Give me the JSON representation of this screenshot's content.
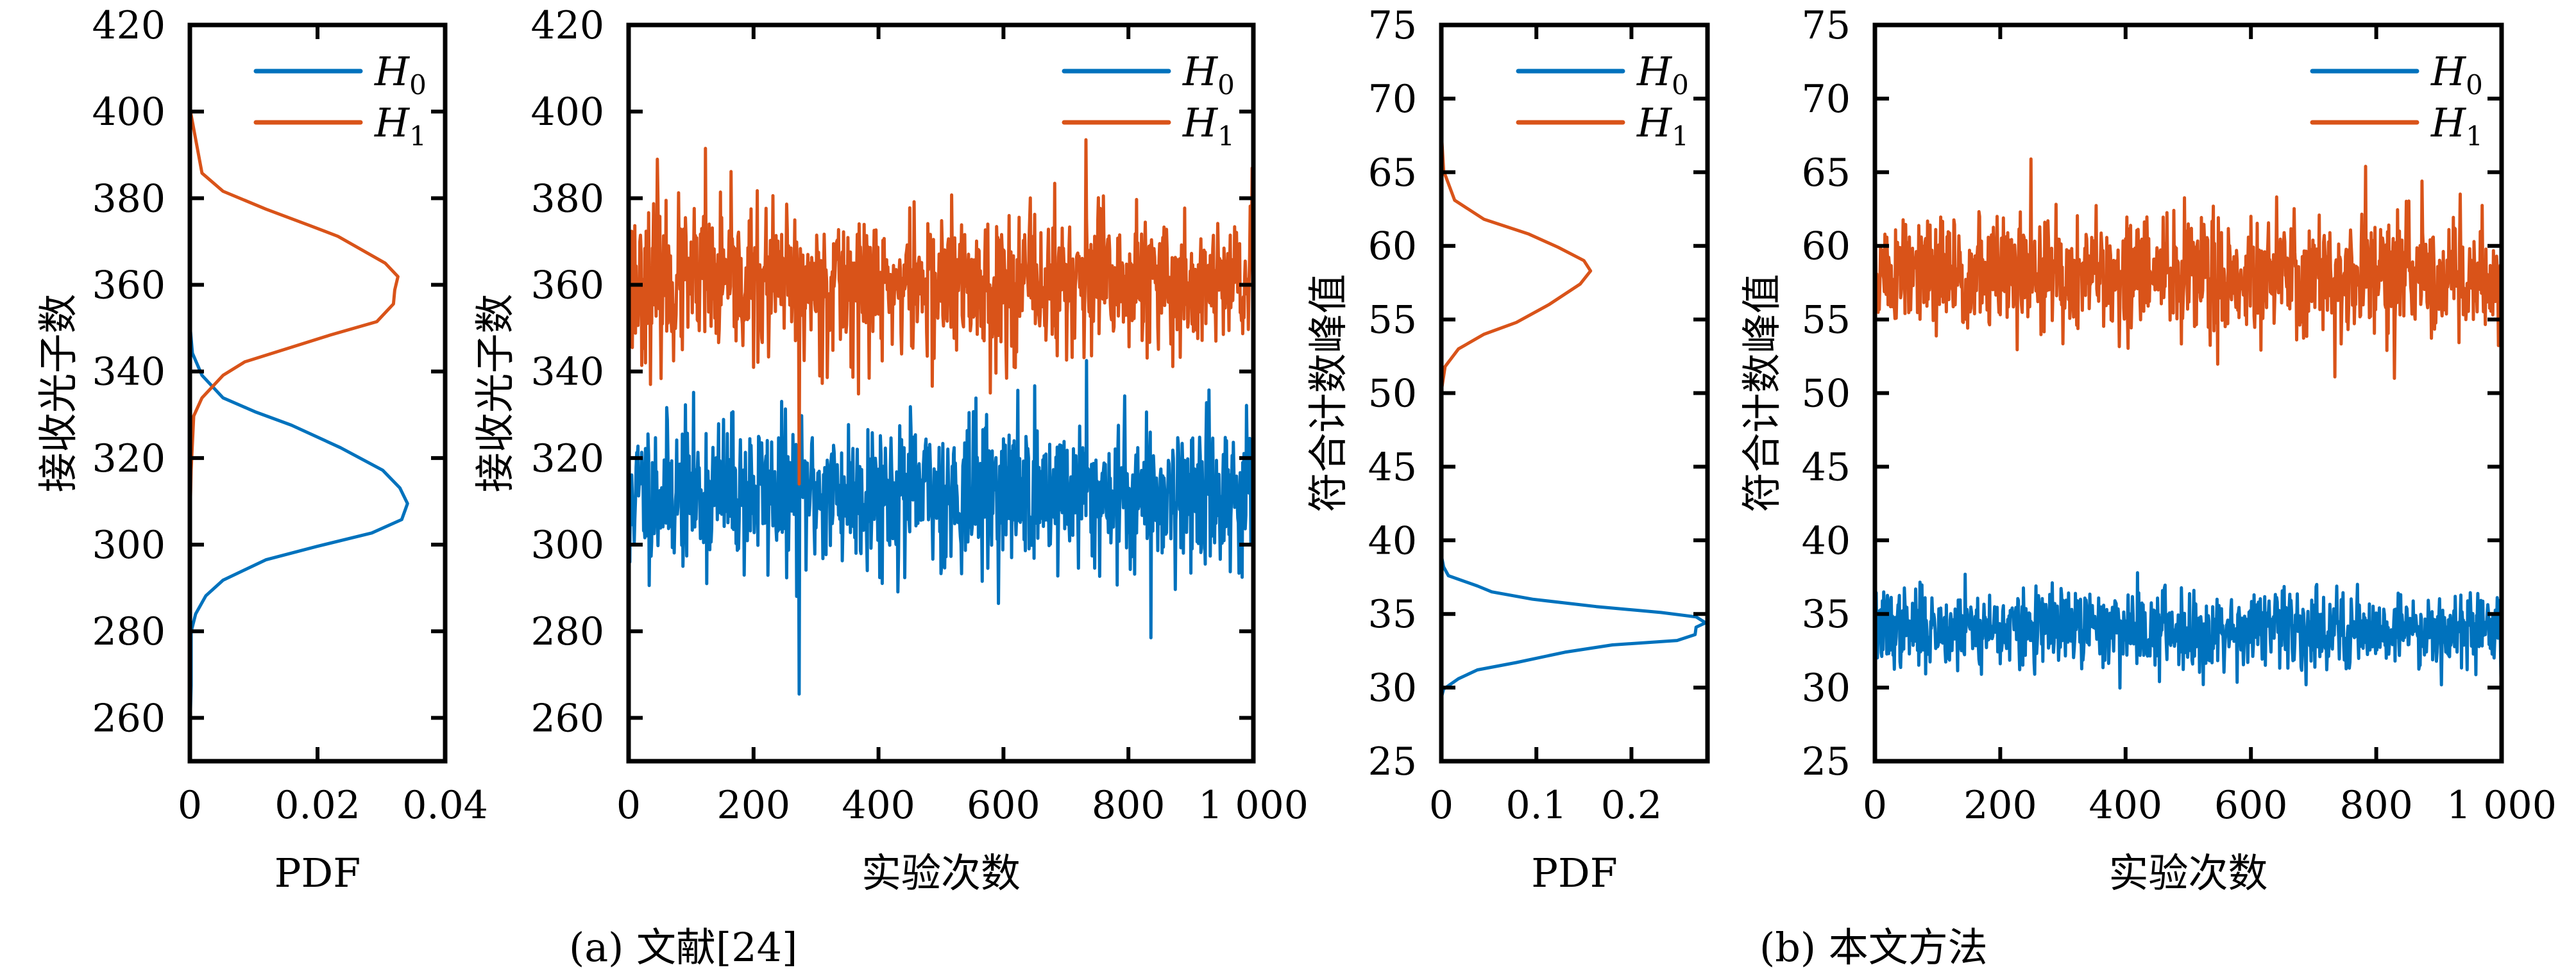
{
  "colors": {
    "H0": "#0072BD",
    "H1": "#D95319",
    "axis": "#000000"
  },
  "captions": [
    {
      "id": "a",
      "text": "(a) 文献[24]"
    },
    {
      "id": "b",
      "text": "(b) 本文方法"
    }
  ],
  "chart_data": [
    {
      "id": "a-pdf",
      "group": "a",
      "type": "line",
      "orientation": "horizontal-pdf",
      "title": "",
      "xlabel": "PDF",
      "ylabel": "接收光子数",
      "xlim": [
        0,
        0.04
      ],
      "ylim": [
        250,
        420
      ],
      "xticks": [
        0,
        0.02,
        0.04
      ],
      "xtick_labels": [
        "0",
        "0.02",
        "0.04"
      ],
      "yticks": [
        260,
        280,
        300,
        320,
        340,
        360,
        380,
        400,
        420
      ],
      "ytick_labels": [
        "260",
        "280",
        "300",
        "320",
        "340",
        "360",
        "380",
        "400",
        "420"
      ],
      "grid": false,
      "legend": {
        "placement": "top-right",
        "entries": [
          {
            "base": "H",
            "sub": "0",
            "series": "H0"
          },
          {
            "base": "H",
            "sub": "1",
            "series": "H1"
          }
        ]
      },
      "series": [
        {
          "name": "H0",
          "points": [
            [
              0,
              256.5
            ],
            [
              0.0002,
              267.5
            ],
            [
              0.0002,
              279.9
            ],
            [
              0.0009,
              284
            ],
            [
              0.0025,
              288.2
            ],
            [
              0.0052,
              291.8
            ],
            [
              0.0119,
              296.5
            ],
            [
              0.0199,
              299.6
            ],
            [
              0.0285,
              302.7
            ],
            [
              0.0332,
              305.8
            ],
            [
              0.0341,
              309.5
            ],
            [
              0.0329,
              313.1
            ],
            [
              0.0302,
              317.2
            ],
            [
              0.0236,
              322.4
            ],
            [
              0.0159,
              327.6
            ],
            [
              0.0102,
              330.7
            ],
            [
              0.0052,
              333.9
            ],
            [
              0.0019,
              339.1
            ],
            [
              0.0004,
              344.2
            ],
            [
              0,
              351
            ]
          ]
        },
        {
          "name": "H1",
          "points": [
            [
              0,
              304.8
            ],
            [
              0.0002,
              317.3
            ],
            [
              0.0006,
              329.7
            ],
            [
              0.0019,
              333.9
            ],
            [
              0.0052,
              339.1
            ],
            [
              0.0086,
              342.2
            ],
            [
              0.0153,
              345.3
            ],
            [
              0.022,
              348.4
            ],
            [
              0.0293,
              351.5
            ],
            [
              0.0319,
              355.6
            ],
            [
              0.0321,
              358.8
            ],
            [
              0.0326,
              361.9
            ],
            [
              0.0306,
              365
            ],
            [
              0.0232,
              371.2
            ],
            [
              0.0186,
              373.8
            ],
            [
              0.0119,
              377.5
            ],
            [
              0.0052,
              381.6
            ],
            [
              0.0019,
              385.8
            ],
            [
              0.0001,
              400
            ],
            [
              0,
              402.9
            ]
          ]
        }
      ]
    },
    {
      "id": "a-trials",
      "group": "a",
      "type": "line",
      "orientation": "time-series",
      "title": "",
      "xlabel": "实验次数",
      "ylabel": "接收光子数",
      "xlim": [
        0,
        1000
      ],
      "ylim": [
        250,
        420
      ],
      "xticks": [
        0,
        200,
        400,
        600,
        800,
        1000
      ],
      "xtick_labels": [
        "0",
        "200",
        "400",
        "600",
        "800",
        "1 000"
      ],
      "yticks": [
        260,
        280,
        300,
        320,
        340,
        360,
        380,
        400,
        420
      ],
      "ytick_labels": [
        "260",
        "280",
        "300",
        "320",
        "340",
        "360",
        "380",
        "400",
        "420"
      ],
      "grid": false,
      "legend": {
        "placement": "top-right",
        "entries": [
          {
            "base": "H",
            "sub": "0",
            "series": "H0"
          },
          {
            "base": "H",
            "sub": "1",
            "series": "H1"
          }
        ]
      },
      "series": [
        {
          "name": "H0",
          "n": 1000,
          "mean": 312,
          "std": 8.5,
          "seed": 11,
          "extremes": [
            [
              272,
              265.5
            ],
            [
              732,
              342.5
            ],
            [
              835,
              278.5
            ],
            [
              1,
              296
            ]
          ]
        },
        {
          "name": "H1",
          "n": 1000,
          "mean": 360,
          "std": 8.5,
          "seed": 23,
          "extremes": [
            [
              272,
              314
            ],
            [
              731,
              393.5
            ],
            [
              122,
              391.5
            ],
            [
              45,
              389
            ]
          ]
        }
      ]
    },
    {
      "id": "b-pdf",
      "group": "b",
      "type": "line",
      "orientation": "horizontal-pdf",
      "title": "",
      "xlabel": "PDF",
      "ylabel": "符合计数峰值",
      "xlim": [
        0,
        0.28
      ],
      "ylim": [
        25,
        75
      ],
      "xticks": [
        0,
        0.1,
        0.2
      ],
      "xtick_labels": [
        "0",
        "0.1",
        "0.2"
      ],
      "yticks": [
        25,
        30,
        35,
        40,
        45,
        50,
        55,
        60,
        65,
        70,
        75
      ],
      "ytick_labels": [
        "25",
        "30",
        "35",
        "40",
        "45",
        "50",
        "55",
        "60",
        "65",
        "70",
        "75"
      ],
      "grid": false,
      "legend": {
        "placement": "top-right",
        "entries": [
          {
            "base": "H",
            "sub": "0",
            "series": "H0"
          },
          {
            "base": "H",
            "sub": "1",
            "series": "H1"
          }
        ]
      },
      "series": [
        {
          "name": "H0",
          "points": [
            [
              0,
              29.3
            ],
            [
              0.0024,
              29.9
            ],
            [
              0.018,
              30.6
            ],
            [
              0.038,
              31.2
            ],
            [
              0.079,
              31.7
            ],
            [
              0.13,
              32.4
            ],
            [
              0.18,
              32.9
            ],
            [
              0.248,
              33.2
            ],
            [
              0.267,
              33.6
            ],
            [
              0.268,
              34.1
            ],
            [
              0.278,
              34.4
            ],
            [
              0.268,
              34.8
            ],
            [
              0.231,
              35.1
            ],
            [
              0.163,
              35.5
            ],
            [
              0.096,
              36
            ],
            [
              0.053,
              36.5
            ],
            [
              0.038,
              36.9
            ],
            [
              0.0075,
              37.6
            ],
            [
              0.0024,
              38.2
            ],
            [
              0,
              39
            ]
          ]
        },
        {
          "name": "H1",
          "points": [
            [
              0,
              49.1
            ],
            [
              0.0007,
              50.4
            ],
            [
              0.004,
              51.8
            ],
            [
              0.018,
              53
            ],
            [
              0.045,
              54
            ],
            [
              0.079,
              54.8
            ],
            [
              0.113,
              56
            ],
            [
              0.146,
              57.4
            ],
            [
              0.157,
              58.3
            ],
            [
              0.15,
              59
            ],
            [
              0.123,
              59.9
            ],
            [
              0.092,
              60.8
            ],
            [
              0.045,
              61.8
            ],
            [
              0.014,
              63.1
            ],
            [
              0.0024,
              65.1
            ],
            [
              0,
              67.8
            ]
          ]
        }
      ]
    },
    {
      "id": "b-trials",
      "group": "b",
      "type": "line",
      "orientation": "time-series",
      "title": "",
      "xlabel": "实验次数",
      "ylabel": "符合计数峰值",
      "xlim": [
        0,
        1000
      ],
      "ylim": [
        25,
        75
      ],
      "xticks": [
        0,
        200,
        400,
        600,
        800,
        1000
      ],
      "xtick_labels": [
        "0",
        "200",
        "400",
        "600",
        "800",
        "1 000"
      ],
      "yticks": [
        25,
        30,
        35,
        40,
        45,
        50,
        55,
        60,
        65,
        70,
        75
      ],
      "ytick_labels": [
        "25",
        "30",
        "35",
        "40",
        "45",
        "50",
        "55",
        "60",
        "65",
        "70",
        "75"
      ],
      "grid": false,
      "legend": {
        "placement": "top-right",
        "entries": [
          {
            "base": "H",
            "sub": "0",
            "series": "H0"
          },
          {
            "base": "H",
            "sub": "1",
            "series": "H1"
          }
        ]
      },
      "series": [
        {
          "name": "H0",
          "n": 1000,
          "mean": 34,
          "std": 1.3,
          "seed": 37,
          "extremes": [
            [
              418,
              37.8
            ],
            [
              143,
              37.7
            ],
            [
              523,
              30.2
            ],
            [
              453,
              30.4
            ]
          ]
        },
        {
          "name": "H1",
          "n": 1000,
          "mean": 58,
          "std": 2.0,
          "seed": 51,
          "extremes": [
            [
              248,
              65.9
            ],
            [
              782,
              65.4
            ],
            [
              828,
              51.0
            ],
            [
              733,
              51.1
            ]
          ]
        }
      ]
    }
  ]
}
